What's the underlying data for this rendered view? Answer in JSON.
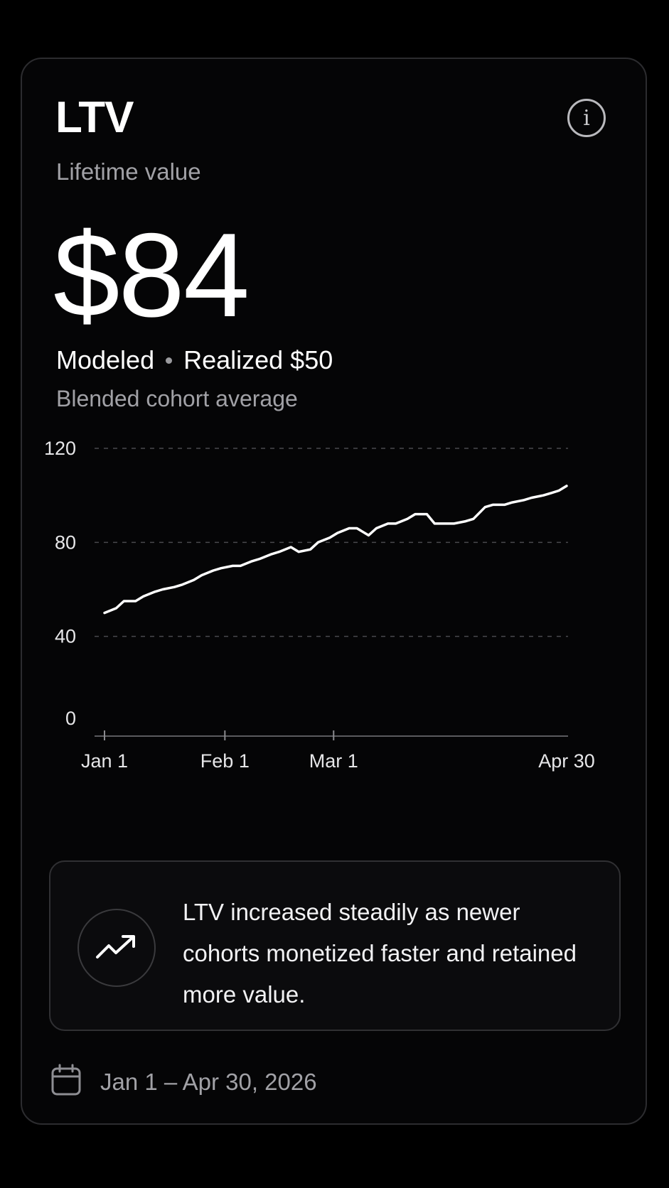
{
  "card": {
    "title": "LTV",
    "subtitle": "Lifetime value",
    "info_icon": "info-icon",
    "value": "$84",
    "modeled_label": "Modeled",
    "realized_label": "Realized $50",
    "description": "Blended cohort average"
  },
  "insight": {
    "icon": "trend-up-icon",
    "text": "LTV increased steadily as newer cohorts monetized faster and retained more value."
  },
  "footer": {
    "icon": "calendar-icon",
    "date_range": "Jan 1 – Apr 30, 2026"
  },
  "colors": {
    "background": "#000000",
    "card": "#050506",
    "line": "#ffffff",
    "muted_text": "#a1a1a6"
  },
  "chart_data": {
    "type": "line",
    "title": "",
    "xlabel": "",
    "ylabel": "",
    "ylim": [
      0,
      120
    ],
    "yticks": [
      0,
      40,
      80,
      120
    ],
    "xticks": [
      {
        "label": "Jan 1",
        "date": "2026-01-01"
      },
      {
        "label": "Feb 1",
        "date": "2026-02-01"
      },
      {
        "label": "Mar 1",
        "date": "2026-03-01"
      },
      {
        "label": "Apr 30",
        "date": "2026-04-30"
      }
    ],
    "grid": "horizontal-dashed",
    "series": [
      {
        "x": [
          "2026-01-01",
          "2026-01-04",
          "2026-01-06",
          "2026-01-09",
          "2026-01-11",
          "2026-01-14",
          "2026-01-16",
          "2026-01-19",
          "2026-01-21",
          "2026-01-24",
          "2026-01-26",
          "2026-01-29",
          "2026-01-31",
          "2026-02-03",
          "2026-02-05",
          "2026-02-08",
          "2026-02-10",
          "2026-02-13",
          "2026-02-15",
          "2026-02-18",
          "2026-02-20",
          "2026-02-23",
          "2026-02-25",
          "2026-02-28",
          "2026-03-02",
          "2026-03-05",
          "2026-03-07",
          "2026-03-10",
          "2026-03-12",
          "2026-03-15",
          "2026-03-17",
          "2026-03-20",
          "2026-03-22",
          "2026-03-25",
          "2026-03-27",
          "2026-03-30",
          "2026-04-01",
          "2026-04-04",
          "2026-04-06",
          "2026-04-09",
          "2026-04-11",
          "2026-04-14",
          "2026-04-16",
          "2026-04-19",
          "2026-04-21",
          "2026-04-24",
          "2026-04-26",
          "2026-04-28",
          "2026-04-30"
        ],
        "y": [
          50,
          52,
          55,
          55,
          57,
          59,
          60,
          61,
          62,
          64,
          66,
          68,
          69,
          70,
          70,
          72,
          73,
          75,
          76,
          78,
          76,
          77,
          80,
          82,
          84,
          86,
          86,
          83,
          86,
          88,
          88,
          90,
          92,
          92,
          88,
          88,
          88,
          89,
          90,
          95,
          96,
          96,
          97,
          98,
          99,
          100,
          101,
          102,
          104
        ]
      }
    ]
  }
}
